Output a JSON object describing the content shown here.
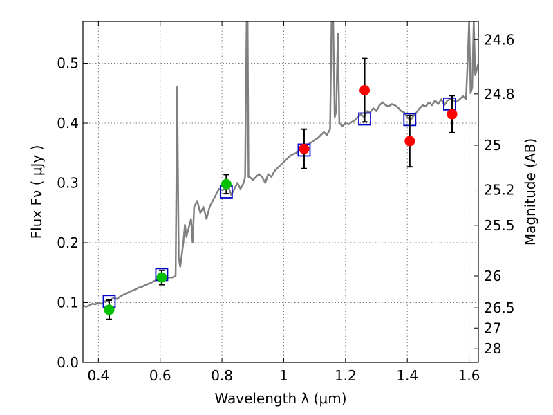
{
  "chart_data": {
    "type": "scatter",
    "title": "",
    "xlabel": "Wavelength  λ (μm)",
    "ylabel": "Flux  Fν ( μJy )",
    "y2label": "Magnitude (AB)",
    "xlim": [
      0.35,
      1.63
    ],
    "ylim": [
      0.0,
      0.57
    ],
    "grid": true,
    "xticks": [
      {
        "value": 0.4,
        "label": "0.4"
      },
      {
        "value": 0.6,
        "label": "0.6"
      },
      {
        "value": 0.8,
        "label": "0.8"
      },
      {
        "value": 1.0,
        "label": "1"
      },
      {
        "value": 1.2,
        "label": "1.2"
      },
      {
        "value": 1.4,
        "label": "1.4"
      },
      {
        "value": 1.6,
        "label": "1.6"
      }
    ],
    "yticks": [
      {
        "value": 0.0,
        "label": "0.0"
      },
      {
        "value": 0.1,
        "label": "0.1"
      },
      {
        "value": 0.2,
        "label": "0.2"
      },
      {
        "value": 0.3,
        "label": "0.3"
      },
      {
        "value": 0.4,
        "label": "0.4"
      },
      {
        "value": 0.5,
        "label": "0.5"
      }
    ],
    "y2ticks": [
      {
        "flux": 0.5396,
        "label": "24.6"
      },
      {
        "flux": 0.4488,
        "label": "24.8"
      },
      {
        "flux": 0.3631,
        "label": "25"
      },
      {
        "flux": 0.2884,
        "label": "25.2"
      },
      {
        "flux": 0.2291,
        "label": "25.5"
      },
      {
        "flux": 0.1445,
        "label": "26"
      },
      {
        "flux": 0.0912,
        "label": "26.5"
      },
      {
        "flux": 0.0575,
        "label": "27"
      },
      {
        "flux": 0.0229,
        "label": "28"
      }
    ],
    "colors": {
      "model": "#808080",
      "green": "#00c000",
      "red": "#ff0000",
      "box": "#0000cc",
      "error": "#000000",
      "grid": "#777777"
    },
    "series": [
      {
        "name": "model-spectrum",
        "kind": "line",
        "points": [
          [
            0.35,
            0.095
          ],
          [
            0.36,
            0.093
          ],
          [
            0.37,
            0.095
          ],
          [
            0.38,
            0.098
          ],
          [
            0.39,
            0.097
          ],
          [
            0.4,
            0.1
          ],
          [
            0.41,
            0.098
          ],
          [
            0.42,
            0.102
          ],
          [
            0.43,
            0.103
          ],
          [
            0.44,
            0.105
          ],
          [
            0.45,
            0.108
          ],
          [
            0.46,
            0.106
          ],
          [
            0.47,
            0.11
          ],
          [
            0.48,
            0.113
          ],
          [
            0.49,
            0.115
          ],
          [
            0.5,
            0.118
          ],
          [
            0.51,
            0.12
          ],
          [
            0.52,
            0.122
          ],
          [
            0.53,
            0.125
          ],
          [
            0.54,
            0.126
          ],
          [
            0.55,
            0.129
          ],
          [
            0.56,
            0.131
          ],
          [
            0.57,
            0.133
          ],
          [
            0.58,
            0.136
          ],
          [
            0.59,
            0.138
          ],
          [
            0.6,
            0.14
          ],
          [
            0.61,
            0.139
          ],
          [
            0.62,
            0.141
          ],
          [
            0.63,
            0.142
          ],
          [
            0.64,
            0.142
          ],
          [
            0.65,
            0.145
          ],
          [
            0.655,
            0.46
          ],
          [
            0.66,
            0.175
          ],
          [
            0.665,
            0.16
          ],
          [
            0.67,
            0.18
          ],
          [
            0.675,
            0.2
          ],
          [
            0.68,
            0.23
          ],
          [
            0.685,
            0.21
          ],
          [
            0.69,
            0.22
          ],
          [
            0.7,
            0.24
          ],
          [
            0.705,
            0.2
          ],
          [
            0.71,
            0.26
          ],
          [
            0.72,
            0.27
          ],
          [
            0.73,
            0.25
          ],
          [
            0.74,
            0.26
          ],
          [
            0.75,
            0.24
          ],
          [
            0.76,
            0.26
          ],
          [
            0.77,
            0.27
          ],
          [
            0.78,
            0.28
          ],
          [
            0.79,
            0.29
          ],
          [
            0.8,
            0.288
          ],
          [
            0.81,
            0.29
          ],
          [
            0.82,
            0.295
          ],
          [
            0.83,
            0.28
          ],
          [
            0.84,
            0.29
          ],
          [
            0.85,
            0.3
          ],
          [
            0.86,
            0.29
          ],
          [
            0.87,
            0.3
          ],
          [
            0.875,
            0.31
          ],
          [
            0.88,
            0.57
          ],
          [
            0.883,
            0.57
          ],
          [
            0.886,
            0.31
          ],
          [
            0.89,
            0.31
          ],
          [
            0.9,
            0.305
          ],
          [
            0.91,
            0.31
          ],
          [
            0.92,
            0.315
          ],
          [
            0.93,
            0.31
          ],
          [
            0.94,
            0.3
          ],
          [
            0.95,
            0.315
          ],
          [
            0.96,
            0.31
          ],
          [
            0.97,
            0.32
          ],
          [
            0.98,
            0.325
          ],
          [
            0.99,
            0.33
          ],
          [
            1.0,
            0.335
          ],
          [
            1.01,
            0.34
          ],
          [
            1.02,
            0.345
          ],
          [
            1.03,
            0.348
          ],
          [
            1.04,
            0.35
          ],
          [
            1.05,
            0.355
          ],
          [
            1.06,
            0.358
          ],
          [
            1.07,
            0.362
          ],
          [
            1.08,
            0.365
          ],
          [
            1.09,
            0.368
          ],
          [
            1.1,
            0.372
          ],
          [
            1.11,
            0.375
          ],
          [
            1.12,
            0.38
          ],
          [
            1.13,
            0.385
          ],
          [
            1.14,
            0.38
          ],
          [
            1.15,
            0.39
          ],
          [
            1.155,
            0.57
          ],
          [
            1.16,
            0.57
          ],
          [
            1.165,
            0.41
          ],
          [
            1.17,
            0.42
          ],
          [
            1.175,
            0.55
          ],
          [
            1.18,
            0.4
          ],
          [
            1.19,
            0.395
          ],
          [
            1.2,
            0.4
          ],
          [
            1.21,
            0.398
          ],
          [
            1.22,
            0.402
          ],
          [
            1.23,
            0.405
          ],
          [
            1.24,
            0.41
          ],
          [
            1.25,
            0.415
          ],
          [
            1.26,
            0.41
          ],
          [
            1.27,
            0.42
          ],
          [
            1.28,
            0.418
          ],
          [
            1.29,
            0.425
          ],
          [
            1.3,
            0.42
          ],
          [
            1.31,
            0.43
          ],
          [
            1.32,
            0.435
          ],
          [
            1.33,
            0.43
          ],
          [
            1.34,
            0.428
          ],
          [
            1.35,
            0.432
          ],
          [
            1.36,
            0.43
          ],
          [
            1.37,
            0.426
          ],
          [
            1.38,
            0.42
          ],
          [
            1.39,
            0.418
          ],
          [
            1.4,
            0.41
          ],
          [
            1.41,
            0.405
          ],
          [
            1.42,
            0.412
          ],
          [
            1.43,
            0.418
          ],
          [
            1.44,
            0.425
          ],
          [
            1.45,
            0.43
          ],
          [
            1.46,
            0.428
          ],
          [
            1.47,
            0.435
          ],
          [
            1.48,
            0.43
          ],
          [
            1.49,
            0.438
          ],
          [
            1.5,
            0.432
          ],
          [
            1.51,
            0.44
          ],
          [
            1.52,
            0.43
          ],
          [
            1.53,
            0.438
          ],
          [
            1.54,
            0.44
          ],
          [
            1.55,
            0.438
          ],
          [
            1.56,
            0.436
          ],
          [
            1.57,
            0.44
          ],
          [
            1.58,
            0.445
          ],
          [
            1.59,
            0.44
          ],
          [
            1.595,
            0.5
          ],
          [
            1.6,
            0.57
          ],
          [
            1.605,
            0.45
          ],
          [
            1.61,
            0.46
          ],
          [
            1.615,
            0.57
          ],
          [
            1.62,
            0.48
          ],
          [
            1.63,
            0.5
          ]
        ]
      },
      {
        "name": "model-photometry",
        "kind": "open-square",
        "points": [
          [
            0.435,
            0.102
          ],
          [
            0.605,
            0.147
          ],
          [
            0.814,
            0.285
          ],
          [
            1.066,
            0.355
          ],
          [
            1.262,
            0.407
          ],
          [
            1.408,
            0.406
          ],
          [
            1.537,
            0.432
          ]
        ]
      },
      {
        "name": "observed-optical",
        "kind": "filled-circle",
        "points": [
          [
            0.435,
            0.088
          ],
          [
            0.605,
            0.142
          ],
          [
            0.814,
            0.298
          ]
        ],
        "errors": [
          0.016,
          0.012,
          0.016
        ]
      },
      {
        "name": "observed-nir",
        "kind": "filled-circle",
        "points": [
          [
            1.066,
            0.357
          ],
          [
            1.262,
            0.455
          ],
          [
            1.408,
            0.37
          ],
          [
            1.545,
            0.415
          ]
        ],
        "errors": [
          0.033,
          0.053,
          0.043,
          0.031
        ]
      }
    ]
  }
}
